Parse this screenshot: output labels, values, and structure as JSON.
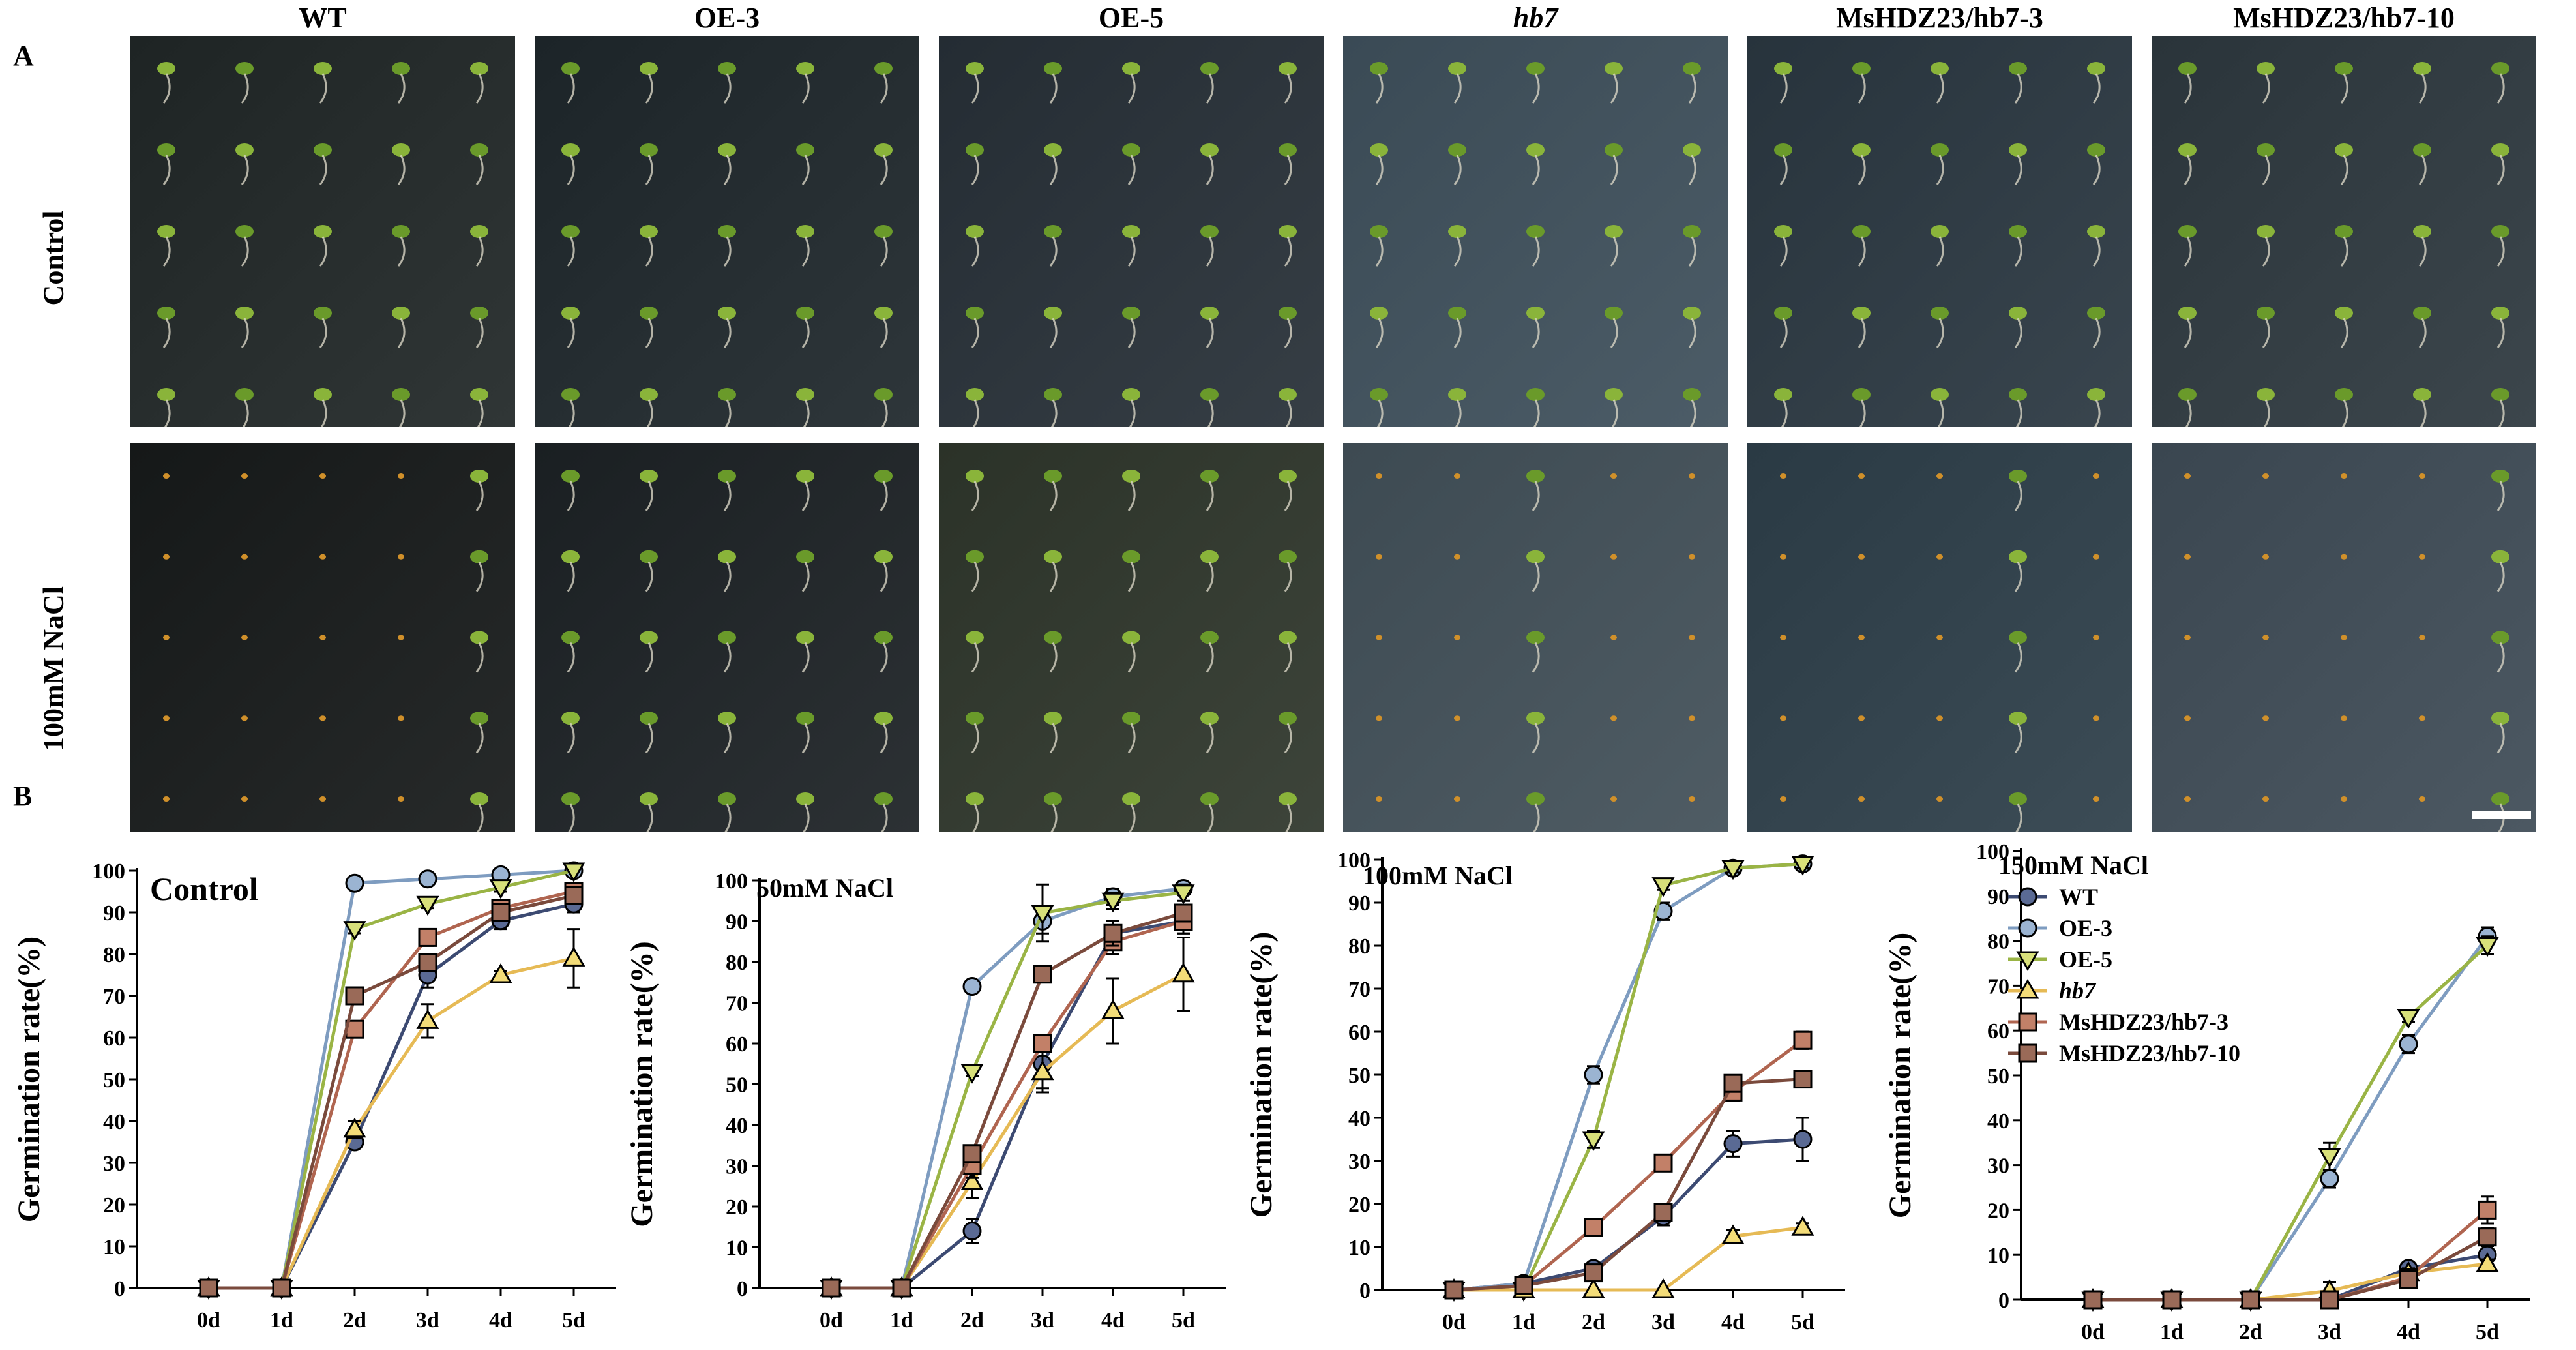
{
  "panel_a": {
    "letter": "A",
    "columns": [
      {
        "label": "WT",
        "italic": false
      },
      {
        "label": "OE-3",
        "italic": false
      },
      {
        "label": "OE-5",
        "italic": false
      },
      {
        "label": "hb7",
        "italic": true
      },
      {
        "label": "MsHDZ23/hb7-3",
        "italic": false
      },
      {
        "label": "MsHDZ23/hb7-10",
        "italic": false
      }
    ],
    "rows": [
      {
        "label": "Control"
      },
      {
        "label": "100mM NaCl"
      }
    ]
  },
  "panel_b": {
    "letter": "B",
    "ylabel": "Germination rate(%)",
    "legend": [
      {
        "name": "WT",
        "italic": false
      },
      {
        "name": "OE-3",
        "italic": false
      },
      {
        "name": "OE-5",
        "italic": false
      },
      {
        "name": "hb7",
        "italic": true
      },
      {
        "name": "MsHDZ23/hb7-3",
        "italic": false
      },
      {
        "name": "MsHDZ23/hb7-10",
        "italic": false
      }
    ]
  },
  "colors": {
    "WT": "#3c4a72",
    "OE-3": "#7e9cc0",
    "OE-5": "#9ab445",
    "hb7": "#e6ba55",
    "MsHDZ23/hb7-3": "#b06550",
    "MsHDZ23/hb7-10": "#7a4a3c",
    "marker_WT": "#5a6a94",
    "marker_OE-3": "#9bb4d2",
    "marker_OE-5": "#d8e07a",
    "marker_hb7": "#f3dc78",
    "marker_MsHDZ23/hb7-3": "#c28068",
    "marker_MsHDZ23/hb7-10": "#9a6a58"
  },
  "chart_data": [
    {
      "type": "line",
      "title": "Control",
      "xlabel": "",
      "ylabel": "Germination rate(%)",
      "categories": [
        "0d",
        "1d",
        "2d",
        "3d",
        "4d",
        "5d"
      ],
      "ylim": [
        0,
        100
      ],
      "yticks": [
        "0",
        "10",
        "20",
        "30",
        "40",
        "50",
        "60",
        "70",
        "80",
        "90",
        "100"
      ],
      "series": [
        {
          "name": "WT",
          "values": [
            0,
            0,
            35,
            75,
            88,
            92
          ],
          "err": [
            0,
            0,
            1,
            3,
            2,
            2
          ]
        },
        {
          "name": "OE-3",
          "values": [
            0,
            0,
            97,
            98,
            99,
            100
          ],
          "err": [
            0,
            0,
            1,
            1,
            1,
            0
          ]
        },
        {
          "name": "OE-5",
          "values": [
            0,
            0,
            86,
            92,
            96,
            100
          ],
          "err": [
            0,
            0,
            1,
            1,
            1,
            0
          ]
        },
        {
          "name": "hb7",
          "values": [
            0,
            0,
            38,
            64,
            75,
            79
          ],
          "err": [
            0,
            0,
            2,
            4,
            1,
            7
          ]
        },
        {
          "name": "MsHDZ23/hb7-3",
          "values": [
            0,
            0,
            62,
            84,
            91,
            95
          ],
          "err": [
            0,
            0,
            2,
            2,
            2,
            2
          ]
        },
        {
          "name": "MsHDZ23/hb7-10",
          "values": [
            0,
            0,
            70,
            78,
            90,
            94
          ],
          "err": [
            0,
            0,
            1,
            2,
            2,
            2
          ]
        }
      ]
    },
    {
      "type": "line",
      "title": "50mM NaCl",
      "xlabel": "",
      "ylabel": "Germination rate(%)",
      "categories": [
        "0d",
        "1d",
        "2d",
        "3d",
        "4d",
        "5d"
      ],
      "ylim": [
        0,
        100
      ],
      "yticks": [
        "0",
        "10",
        "20",
        "30",
        "40",
        "50",
        "60",
        "70",
        "80",
        "90",
        "100"
      ],
      "series": [
        {
          "name": "WT",
          "values": [
            0,
            0,
            14,
            55,
            87,
            90
          ],
          "err": [
            0,
            0,
            3,
            6,
            3,
            3
          ]
        },
        {
          "name": "OE-3",
          "values": [
            0,
            0,
            74,
            90,
            96,
            98
          ],
          "err": [
            0,
            0,
            1,
            3,
            2,
            1
          ]
        },
        {
          "name": "OE-5",
          "values": [
            0,
            0,
            53,
            92,
            95,
            97
          ],
          "err": [
            0,
            0,
            1,
            7,
            2,
            2
          ]
        },
        {
          "name": "hb7",
          "values": [
            0,
            0,
            26,
            53,
            68,
            77
          ],
          "err": [
            0,
            0,
            4,
            5,
            8,
            9
          ]
        },
        {
          "name": "MsHDZ23/hb7-3",
          "values": [
            0,
            0,
            30,
            60,
            85,
            90
          ],
          "err": [
            0,
            0,
            3,
            2,
            3,
            3
          ]
        },
        {
          "name": "MsHDZ23/hb7-10",
          "values": [
            0,
            0,
            33,
            77,
            87,
            92
          ],
          "err": [
            0,
            0,
            2,
            2,
            3,
            2
          ]
        }
      ]
    },
    {
      "type": "line",
      "title": "100mM NaCl",
      "xlabel": "",
      "ylabel": "Germination rate(%)",
      "categories": [
        "0d",
        "1d",
        "2d",
        "3d",
        "4d",
        "5d"
      ],
      "ylim": [
        0,
        100
      ],
      "yticks": [
        "0",
        "10",
        "20",
        "30",
        "40",
        "50",
        "60",
        "70",
        "80",
        "90",
        "100"
      ],
      "series": [
        {
          "name": "WT",
          "values": [
            0,
            1.5,
            5,
            17,
            34,
            35
          ],
          "err": [
            0,
            1,
            1,
            2,
            3,
            5
          ]
        },
        {
          "name": "OE-3",
          "values": [
            0,
            1.5,
            50,
            88,
            98,
            99
          ],
          "err": [
            0,
            0.5,
            2,
            2,
            1,
            1
          ]
        },
        {
          "name": "OE-5",
          "values": [
            0,
            0,
            35,
            94,
            98,
            99
          ],
          "err": [
            0,
            0,
            2,
            1,
            1,
            1
          ]
        },
        {
          "name": "hb7",
          "values": [
            0,
            0,
            0,
            0,
            12.5,
            14.5
          ],
          "err": [
            0,
            0,
            0,
            0,
            1.5,
            1
          ]
        },
        {
          "name": "MsHDZ23/hb7-3",
          "values": [
            0,
            1,
            14.5,
            29.5,
            46,
            58
          ],
          "err": [
            0,
            0.5,
            1,
            1,
            2,
            2
          ]
        },
        {
          "name": "MsHDZ23/hb7-10",
          "values": [
            0,
            1,
            4,
            18,
            48,
            49
          ],
          "err": [
            0,
            0.5,
            1,
            2,
            1,
            1
          ]
        }
      ]
    },
    {
      "type": "line",
      "title": "150mM NaCl",
      "xlabel": "",
      "ylabel": "Germination rate(%)",
      "categories": [
        "0d",
        "1d",
        "2d",
        "3d",
        "4d",
        "5d"
      ],
      "ylim": [
        0,
        100
      ],
      "yticks": [
        "0",
        "10",
        "20",
        "30",
        "40",
        "50",
        "60",
        "70",
        "80",
        "90",
        "100"
      ],
      "series": [
        {
          "name": "WT",
          "values": [
            0,
            0,
            0,
            0,
            7,
            10
          ],
          "err": [
            0,
            0,
            0,
            1,
            1,
            2
          ]
        },
        {
          "name": "OE-3",
          "values": [
            0,
            0,
            0,
            27,
            57,
            81
          ],
          "err": [
            0,
            0,
            0,
            2,
            2,
            2
          ]
        },
        {
          "name": "OE-5",
          "values": [
            0,
            0,
            0,
            32,
            63,
            79
          ],
          "err": [
            0,
            0,
            0,
            3,
            1,
            2
          ]
        },
        {
          "name": "hb7",
          "values": [
            0,
            0,
            0,
            2,
            6,
            8
          ],
          "err": [
            0,
            0,
            0,
            2,
            1,
            1
          ]
        },
        {
          "name": "MsHDZ23/hb7-3",
          "values": [
            0,
            0,
            0,
            0,
            5,
            20
          ],
          "err": [
            0,
            0,
            0,
            1,
            1,
            3
          ]
        },
        {
          "name": "MsHDZ23/hb7-10",
          "values": [
            0,
            0,
            0,
            0,
            4.5,
            14
          ],
          "err": [
            0,
            0,
            0,
            1,
            1,
            2
          ]
        }
      ]
    }
  ]
}
